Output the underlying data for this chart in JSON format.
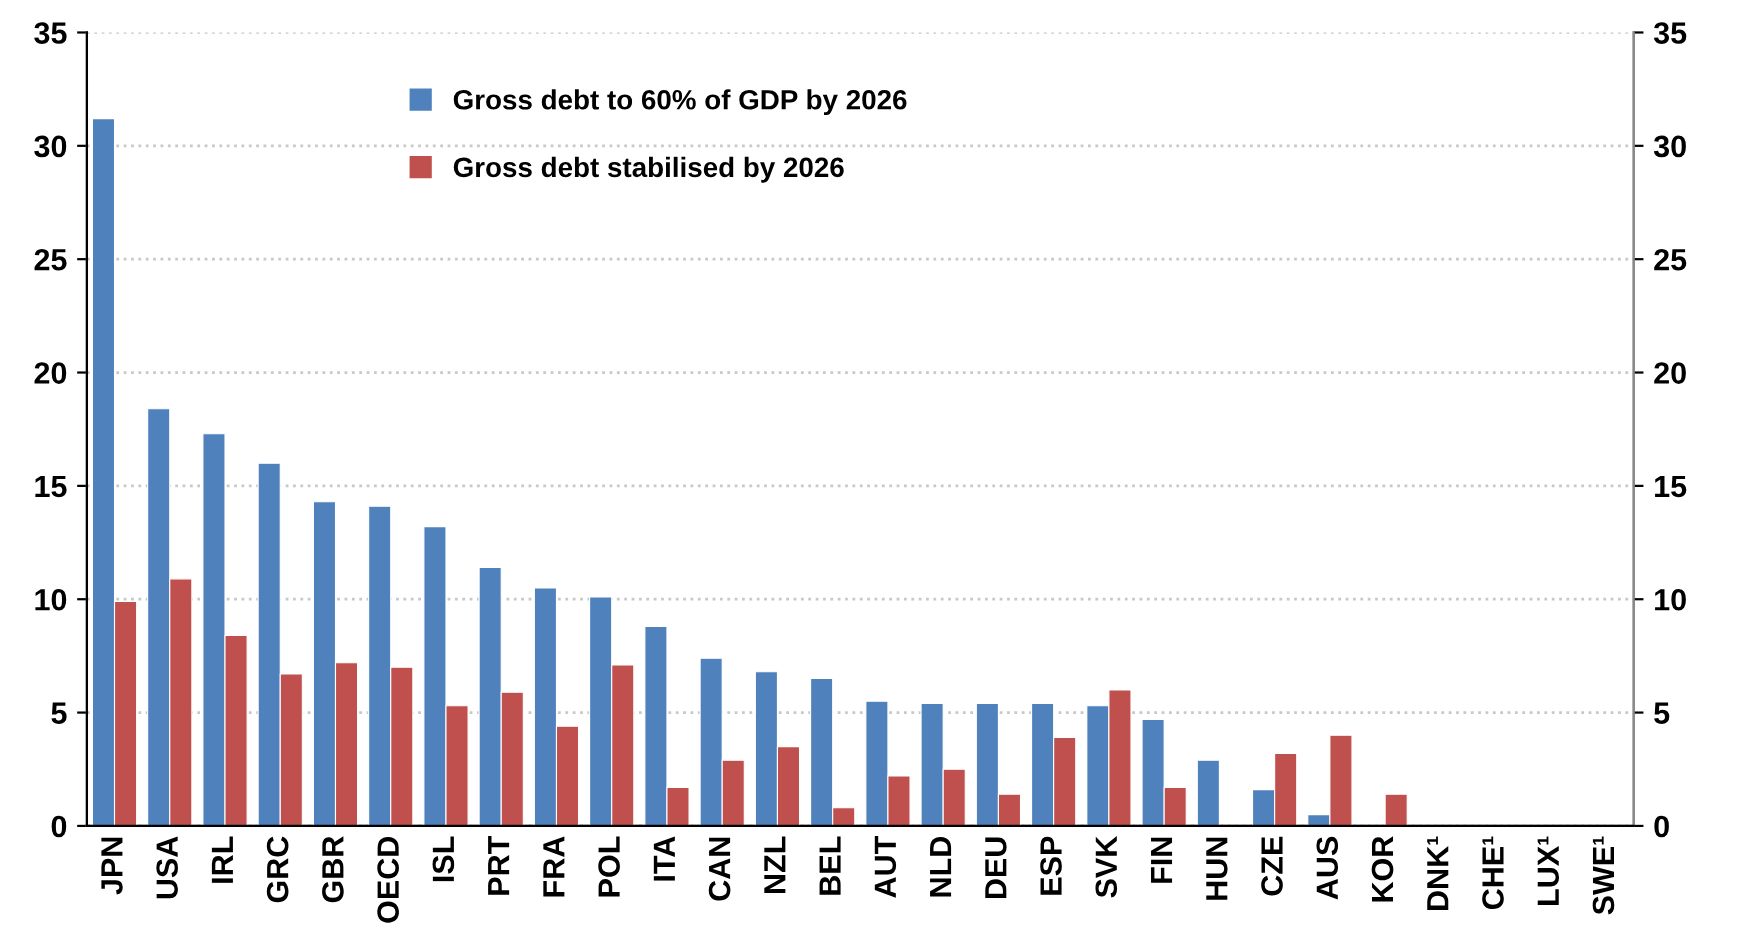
{
  "chart_data": {
    "type": "bar",
    "categories": [
      "JPN",
      "USA",
      "IRL",
      "GRC",
      "GBR",
      "OECD",
      "ISL",
      "PRT",
      "FRA",
      "POL",
      "ITA",
      "CAN",
      "NZL",
      "BEL",
      "AUT",
      "NLD",
      "DEU",
      "ESP",
      "SVK",
      "FIN",
      "HUN",
      "CZE",
      "AUS",
      "KOR",
      "DNK¹",
      "CHE¹",
      "LUX¹",
      "SWE¹"
    ],
    "series": [
      {
        "name": "Gross debt to 60% of GDP by 2026",
        "color": "#4f81bd",
        "values": [
          31.2,
          18.4,
          17.3,
          16.0,
          14.3,
          14.1,
          13.2,
          11.4,
          10.5,
          10.1,
          8.8,
          7.4,
          6.8,
          6.5,
          5.5,
          5.4,
          5.4,
          5.4,
          5.3,
          4.7,
          2.9,
          1.6,
          0.5,
          null,
          null,
          null,
          null,
          null
        ]
      },
      {
        "name": "Gross debt stabilised by 2026",
        "color": "#c0504d",
        "values": [
          9.9,
          10.9,
          8.4,
          6.7,
          7.2,
          7.0,
          5.3,
          5.9,
          4.4,
          7.1,
          1.7,
          2.9,
          3.5,
          0.8,
          2.2,
          2.5,
          1.4,
          3.9,
          6.0,
          1.7,
          null,
          3.2,
          4.0,
          1.4,
          null,
          null,
          null,
          null
        ]
      }
    ],
    "ylim": [
      0,
      35
    ],
    "yticks": [
      0,
      5,
      10,
      15,
      20,
      25,
      30,
      35
    ],
    "y2lim": [
      0,
      35
    ],
    "y2ticks": [
      0,
      5,
      10,
      15,
      20,
      25,
      30,
      35
    ],
    "grid": "y",
    "legend": "top"
  }
}
